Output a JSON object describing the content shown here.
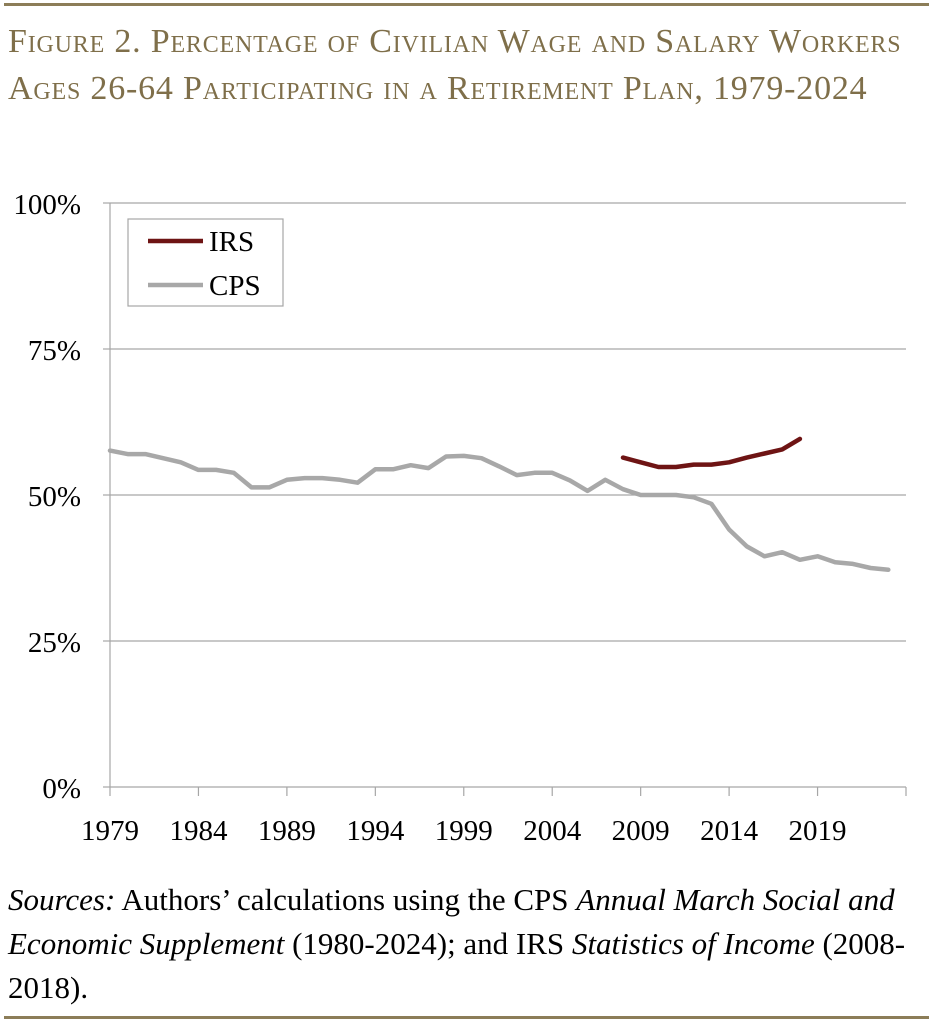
{
  "title": "Figure 2. Percentage of Civilian Wage and Salary Workers Ages 26-64 Participating in a Retirement Plan, 1979-2024",
  "colors": {
    "rule": "#8c7d58",
    "title": "#7f6f4a",
    "irs": "#6e1414",
    "cps": "#a8a8a8",
    "grid": "#a6a6a6"
  },
  "chart_data": {
    "type": "line",
    "ylim": [
      0,
      100
    ],
    "xlim": [
      1979,
      2024
    ],
    "y_ticks": [
      "0%",
      "25%",
      "50%",
      "75%",
      "100%"
    ],
    "y_tick_values": [
      0,
      25,
      50,
      75,
      100
    ],
    "x_ticks": [
      "1979",
      "1984",
      "1989",
      "1994",
      "1999",
      "2004",
      "2009",
      "2014",
      "2019"
    ],
    "grid": "horizontal",
    "legend_position": "top-left",
    "series": [
      {
        "name": "IRS",
        "color": "#6e1414",
        "x": [
          2008,
          2009,
          2010,
          2011,
          2012,
          2013,
          2014,
          2015,
          2016,
          2017,
          2018
        ],
        "values": [
          56.4,
          55.6,
          54.8,
          54.8,
          55.2,
          55.2,
          55.6,
          56.4,
          57.1,
          57.8,
          59.6
        ]
      },
      {
        "name": "CPS",
        "color": "#a8a8a8",
        "x": [
          1979,
          1980,
          1981,
          1982,
          1983,
          1984,
          1985,
          1986,
          1987,
          1988,
          1989,
          1990,
          1991,
          1992,
          1993,
          1994,
          1995,
          1996,
          1997,
          1998,
          1999,
          2000,
          2001,
          2002,
          2003,
          2004,
          2005,
          2006,
          2007,
          2008,
          2009,
          2010,
          2011,
          2012,
          2013,
          2014,
          2015,
          2016,
          2017,
          2018,
          2019,
          2020,
          2021,
          2022,
          2023
        ],
        "values": [
          57.6,
          57.0,
          57.0,
          56.3,
          55.6,
          54.3,
          54.3,
          53.8,
          51.3,
          51.3,
          52.6,
          52.9,
          52.9,
          52.6,
          52.1,
          54.4,
          54.4,
          55.1,
          54.6,
          56.6,
          56.7,
          56.3,
          54.9,
          53.4,
          53.8,
          53.8,
          52.5,
          50.7,
          52.6,
          51.0,
          50.0,
          50.0,
          50.0,
          49.6,
          48.5,
          44.1,
          41.2,
          39.5,
          40.2,
          38.9,
          39.5,
          38.5,
          38.2,
          37.5,
          37.2
        ]
      }
    ]
  },
  "sources": {
    "label": "Sources:",
    "text1": " Authors’ calculations using the CPS ",
    "italic1": "Annual March Social and Economic Supplement",
    "text2": " (1980-2024); and IRS ",
    "italic2": "Statis­tics of Income",
    "text3": " (2008-2018)."
  }
}
